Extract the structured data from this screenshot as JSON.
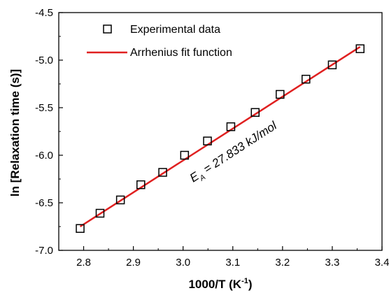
{
  "chart_data": {
    "type": "scatter",
    "xlabel": "1000/T (K",
    "xlabel_sup": "-1",
    "xlabel_end": ")",
    "ylabel": "ln [Relaxation time (s)]",
    "xlim": [
      2.75,
      3.4
    ],
    "ylim": [
      -7.0,
      -4.5
    ],
    "x_ticks": [
      2.8,
      2.9,
      3.0,
      3.1,
      3.2,
      3.3,
      3.4
    ],
    "x_tick_labels": [
      "2.8",
      "2.9",
      "3.0",
      "3.1",
      "3.2",
      "3.3",
      "3.4"
    ],
    "y_ticks": [
      -7.0,
      -6.5,
      -6.0,
      -5.5,
      -5.0,
      -4.5
    ],
    "y_tick_labels": [
      "-7.0",
      "-6.5",
      "-6.0",
      "-5.5",
      "-5.0",
      "-4.5"
    ],
    "grid": false,
    "legend_position": "top-left",
    "series": [
      {
        "name": "Experimental data",
        "marker": "open-square",
        "color": "#000000",
        "x": [
          2.793,
          2.833,
          2.874,
          2.915,
          2.959,
          3.003,
          3.049,
          3.096,
          3.145,
          3.195,
          3.247,
          3.3,
          3.356
        ],
        "y": [
          -6.77,
          -6.61,
          -6.47,
          -6.31,
          -6.18,
          -6.0,
          -5.85,
          -5.7,
          -5.55,
          -5.36,
          -5.2,
          -5.05,
          -4.88
        ]
      },
      {
        "name": "Arrhenius fit function",
        "type": "line",
        "color": "#e02020",
        "x": [
          2.793,
          3.356
        ],
        "y": [
          -6.75,
          -4.86
        ]
      }
    ],
    "annotation": {
      "symbol": "E",
      "subscript": "A",
      "text": " = 27.833 kJ/mol",
      "at": [
        3.12,
        -5.9
      ],
      "angle_deg": -33
    }
  }
}
